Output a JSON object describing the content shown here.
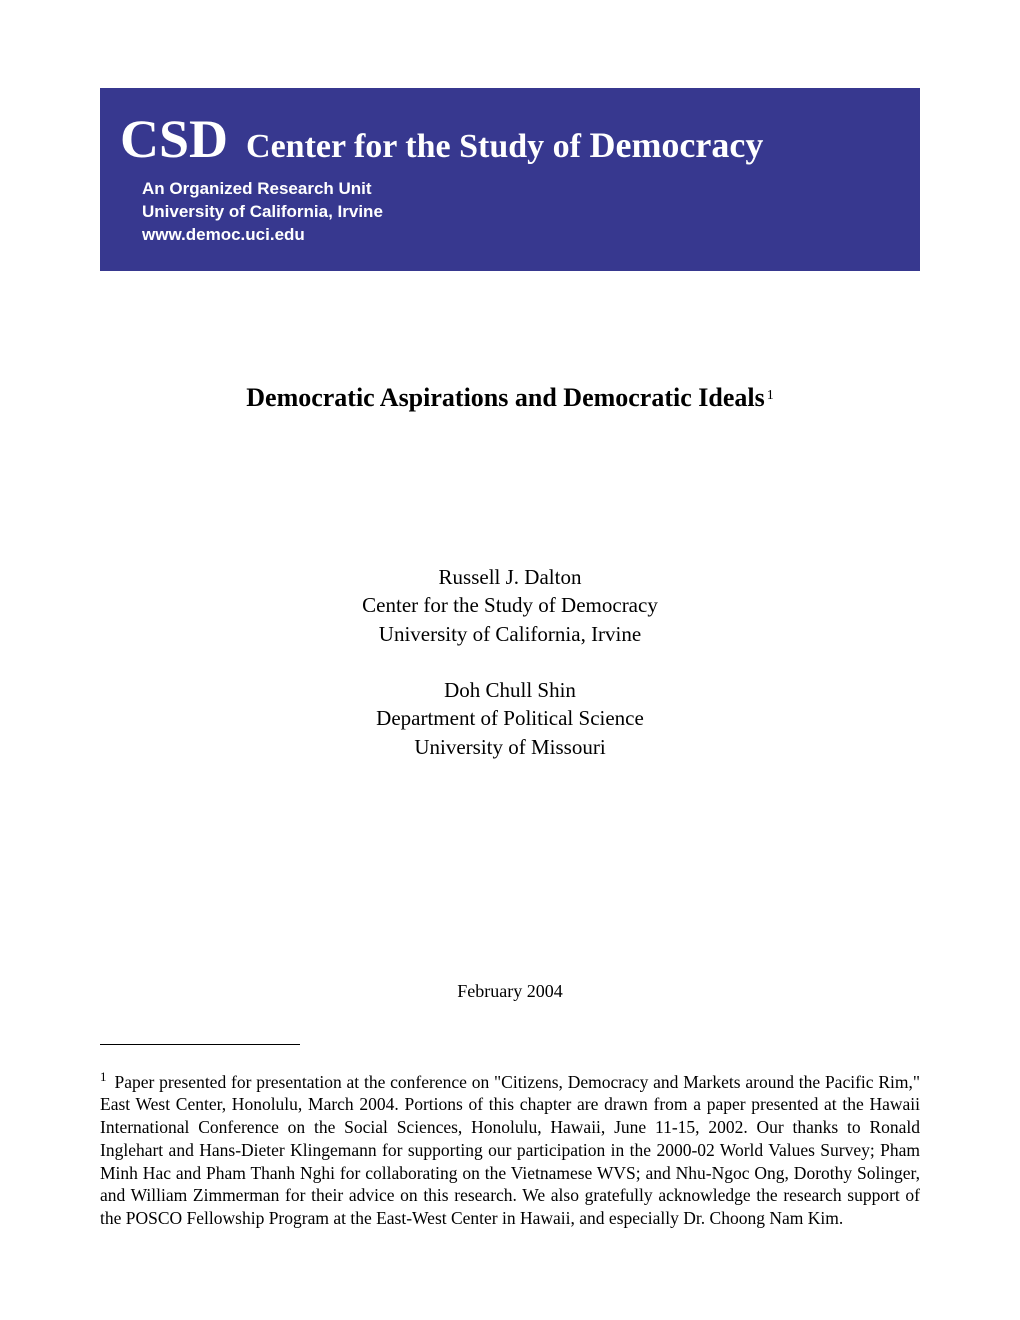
{
  "banner": {
    "abbrev": "CSD",
    "title_prefix": "Center for the Study of",
    "title_emphasis": "Democracy",
    "subtitle_line1": "An Organized Research Unit",
    "subtitle_line2": "University of California, Irvine",
    "subtitle_line3": "www.democ.uci.edu",
    "background_color": "#37388f",
    "text_color": "#ffffff"
  },
  "title": {
    "text": "Democratic Aspirations and Democratic Ideals",
    "footnote_ref": "1"
  },
  "authors": {
    "group1": {
      "name": "Russell J. Dalton",
      "affiliation1": "Center for the Study of Democracy",
      "affiliation2": "University of California, Irvine"
    },
    "group2": {
      "name": "Doh Chull Shin",
      "affiliation1": "Department of Political Science",
      "affiliation2": "University of Missouri"
    }
  },
  "date": "February 2004",
  "footnote": {
    "marker": "1",
    "text": "Paper presented for presentation at the conference on \"Citizens, Democracy and Markets around the Pacific Rim,\" East West Center, Honolulu, March 2004.  Portions of this chapter are drawn from a paper presented at the Hawaii International Conference on the Social Sciences, Honolulu, Hawaii, June 11-15, 2002. Our thanks to Ronald Inglehart and Hans-Dieter Klingemann for supporting our participation in the 2000-02 World Values Survey; Pham Minh Hac and Pham Thanh Nghi for collaborating on the Vietnamese WVS; and Nhu-Ngoc Ong, Dorothy Solinger, and William Zimmerman for their advice on this research.  We also gratefully acknowledge the research support of the POSCO Fellowship Program at the East-West Center in Hawaii, and especially Dr. Choong Nam Kim."
  }
}
